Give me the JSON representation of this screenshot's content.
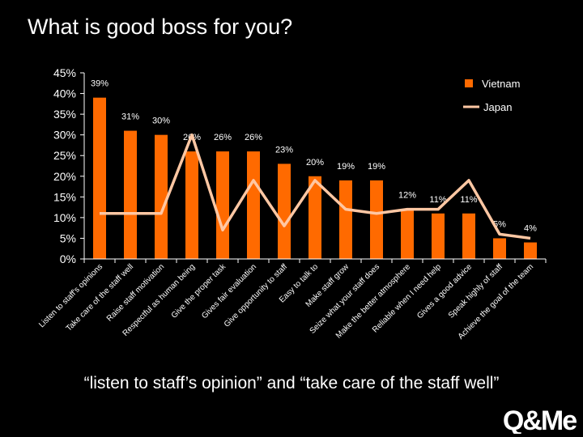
{
  "title": "What is good boss for you?",
  "caption": "“listen to staff’s opinion” and “take care of the staff well”",
  "logo_text": "Q&Me",
  "colors": {
    "vietnam": "#FF6A00",
    "japan": "#FFC7A3",
    "axis": "#FFFFFF",
    "background": "#000000"
  },
  "chart_data": {
    "type": "bar",
    "categories": [
      "Listen to staff's opinions",
      "Take care of the staff well",
      "Raise staff motivation",
      "Respectful as human being",
      "Give the proper task",
      "Gives fair evaluation",
      "Give opportunity to staff",
      "Easy to talk to",
      "Make staff grow",
      "Seize what your staff does",
      "Make the better atmosphere",
      "Reliable when I need help",
      "Gives a good advice",
      "Speak highly of staff",
      "Achieve the goal of the team"
    ],
    "series": [
      {
        "name": "Vietnam",
        "type": "bar",
        "values": [
          39,
          31,
          30,
          26,
          26,
          26,
          23,
          20,
          19,
          19,
          12,
          11,
          11,
          5,
          4
        ],
        "labels": [
          "39%",
          "31%",
          "30%",
          "26%",
          "26%",
          "26%",
          "23%",
          "20%",
          "19%",
          "19%",
          "12%",
          "11%",
          "11%",
          "5%",
          "4%"
        ]
      },
      {
        "name": "Japan",
        "type": "line",
        "values": [
          11,
          11,
          11,
          30,
          7,
          19,
          8,
          19,
          12,
          11,
          12,
          12,
          19,
          6,
          5
        ]
      }
    ],
    "y_ticks": [
      "0%",
      "5%",
      "10%",
      "15%",
      "20%",
      "25%",
      "30%",
      "35%",
      "40%",
      "45%"
    ],
    "ylim": [
      0,
      45
    ],
    "legend_position": "top-right"
  }
}
